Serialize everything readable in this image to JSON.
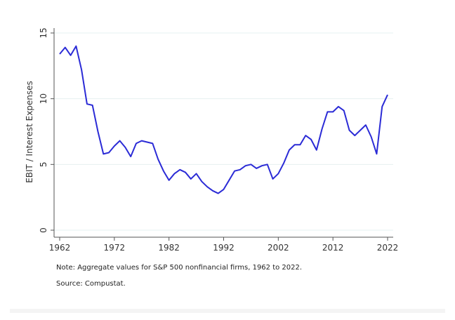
{
  "chart_data": {
    "type": "line",
    "title": "",
    "xlabel": "",
    "ylabel": "EBIT / Interest Expenses",
    "xlim": [
      1962,
      2022
    ],
    "ylim": [
      0,
      15
    ],
    "xticks": [
      "1962",
      "1972",
      "1982",
      "1992",
      "2002",
      "2012",
      "2022"
    ],
    "yticks": [
      "0",
      "5",
      "10",
      "15"
    ],
    "grid": true,
    "line_color": "#2b2bd6",
    "series": [
      {
        "name": "EBIT / Interest Expenses",
        "x": [
          1962,
          1963,
          1964,
          1965,
          1966,
          1967,
          1968,
          1969,
          1970,
          1971,
          1972,
          1973,
          1974,
          1975,
          1976,
          1977,
          1978,
          1979,
          1980,
          1981,
          1982,
          1983,
          1984,
          1985,
          1986,
          1987,
          1988,
          1989,
          1990,
          1991,
          1992,
          1993,
          1994,
          1995,
          1996,
          1997,
          1998,
          1999,
          2000,
          2001,
          2002,
          2003,
          2004,
          2005,
          2006,
          2007,
          2008,
          2009,
          2010,
          2011,
          2012,
          2013,
          2014,
          2015,
          2016,
          2017,
          2018,
          2019,
          2020,
          2021,
          2022
        ],
        "values": [
          13.4,
          13.9,
          13.3,
          14.0,
          12.2,
          9.6,
          9.5,
          7.5,
          5.8,
          5.9,
          6.4,
          6.8,
          6.3,
          5.6,
          6.6,
          6.8,
          6.7,
          6.6,
          5.4,
          4.5,
          3.8,
          4.3,
          4.6,
          4.4,
          3.9,
          4.3,
          3.7,
          3.3,
          3.0,
          2.8,
          3.1,
          3.8,
          4.5,
          4.6,
          4.9,
          5.0,
          4.7,
          4.9,
          5.0,
          3.9,
          4.3,
          5.1,
          6.1,
          6.5,
          6.5,
          7.2,
          6.9,
          6.1,
          7.7,
          9.0,
          9.0,
          9.4,
          9.1,
          7.6,
          7.2,
          7.6,
          8.0,
          7.1,
          5.8,
          9.4,
          10.3
        ]
      }
    ]
  },
  "notes": {
    "note": "Note: Aggregate values for S&P 500 nonfinancial firms, 1962 to 2022.",
    "source": "Source: Compustat."
  }
}
